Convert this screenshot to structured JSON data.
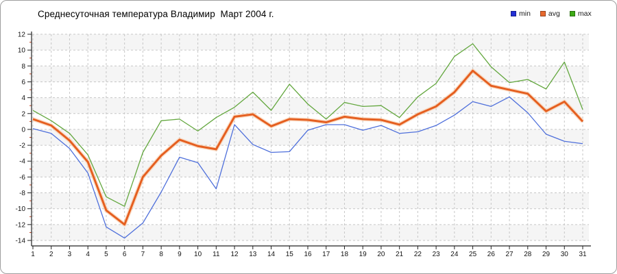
{
  "title": "Среднесуточная температура Владимир  Март 2004 г.",
  "legend": {
    "items": [
      {
        "label": "min",
        "color": "#2430d6"
      },
      {
        "label": "avg",
        "color": "#e8692e"
      },
      {
        "label": "max",
        "color": "#3dab15"
      }
    ]
  },
  "chart_data": {
    "type": "line",
    "title": "Среднесуточная температура Владимир  Март 2004 г.",
    "x": [
      1,
      2,
      3,
      4,
      5,
      6,
      7,
      8,
      9,
      10,
      11,
      12,
      13,
      14,
      15,
      16,
      17,
      18,
      19,
      20,
      21,
      22,
      23,
      24,
      25,
      26,
      27,
      28,
      29,
      30,
      31
    ],
    "xticks": [
      1,
      2,
      3,
      4,
      5,
      6,
      7,
      8,
      9,
      10,
      11,
      12,
      13,
      14,
      15,
      16,
      17,
      18,
      19,
      20,
      21,
      22,
      23,
      24,
      25,
      26,
      27,
      28,
      29,
      30,
      31
    ],
    "ylim": [
      -14,
      12
    ],
    "yticks": [
      12,
      10,
      8,
      6,
      4,
      2,
      0,
      -2,
      -4,
      -6,
      -8,
      -10,
      -12,
      -14
    ],
    "grid": true,
    "legend_position": "top-right",
    "series": [
      {
        "name": "min",
        "color": "#4e6fdb",
        "values": [
          0.1,
          -0.5,
          -2.4,
          -5.5,
          -12.3,
          -13.7,
          -11.8,
          -7.9,
          -3.5,
          -4.2,
          -7.5,
          0.6,
          -1.9,
          -2.9,
          -2.8,
          -0.1,
          0.6,
          0.6,
          -0.1,
          0.5,
          -0.5,
          -0.3,
          0.5,
          1.8,
          3.5,
          2.9,
          4.1,
          2.1,
          -0.6,
          -1.5,
          -1.8
        ]
      },
      {
        "name": "avg",
        "color": "#e55f20",
        "halo": "#f8c7a0",
        "values": [
          1.3,
          0.5,
          -1.4,
          -4.1,
          -10.2,
          -12.0,
          -6.0,
          -3.3,
          -1.3,
          -2.1,
          -2.5,
          1.6,
          1.9,
          0.4,
          1.3,
          1.2,
          0.9,
          1.6,
          1.3,
          1.2,
          0.6,
          1.9,
          2.9,
          4.7,
          7.4,
          5.5,
          5.0,
          4.5,
          2.3,
          3.5,
          1.0
        ]
      },
      {
        "name": "max",
        "color": "#63a73e",
        "values": [
          2.4,
          1.1,
          -0.5,
          -3.2,
          -8.5,
          -9.7,
          -2.9,
          1.1,
          1.3,
          -0.2,
          1.5,
          2.8,
          4.7,
          2.4,
          5.7,
          3.2,
          1.3,
          3.4,
          2.9,
          3.0,
          1.5,
          4.1,
          5.8,
          9.2,
          10.8,
          7.9,
          5.9,
          6.3,
          5.1,
          8.5,
          2.5
        ]
      }
    ],
    "colors": {
      "grid": "#c6c6c6",
      "band": "#f5f5f5",
      "axis": "#222222",
      "minor_tick": "#c2401c"
    }
  }
}
